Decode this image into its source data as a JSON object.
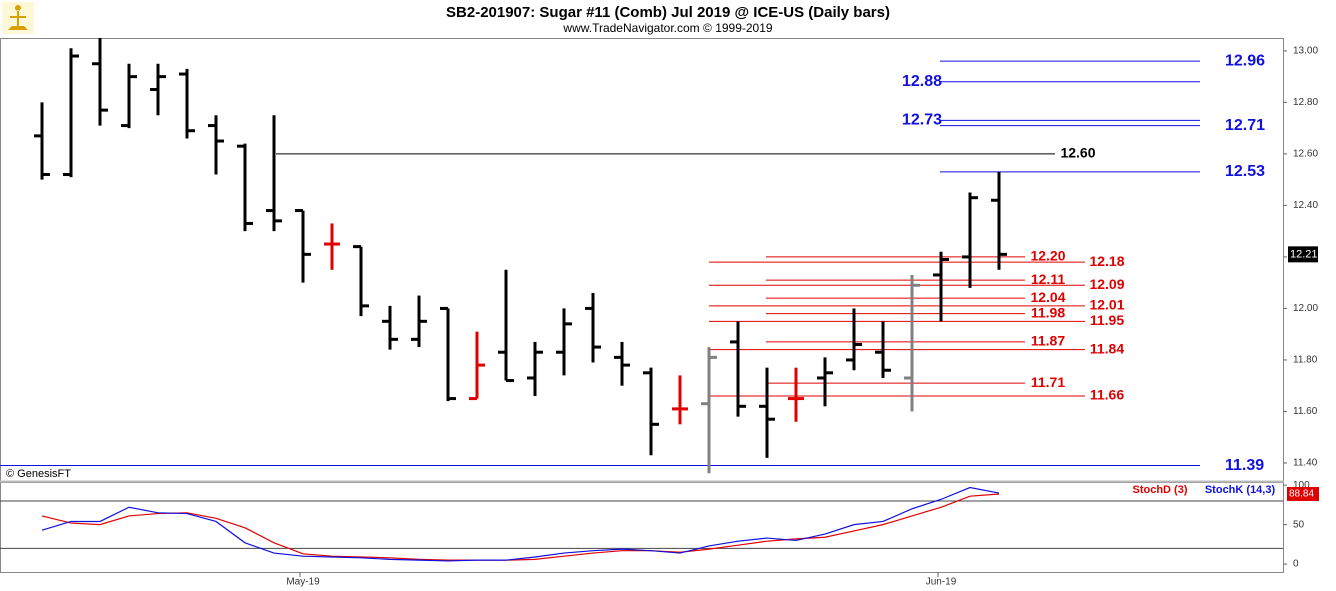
{
  "chart_data": [
    {
      "type": "ohlc",
      "title": "SB2-201907:  Sugar #11 (Comb) Jul 2019 @ ICE-US  (Daily bars)",
      "subtitle": "www.TradeNavigator.com © 1999-2019",
      "source": "© GenesisFT",
      "categories": [
        null,
        null,
        null,
        null,
        null,
        null,
        null,
        null,
        null,
        "May-19",
        null,
        null,
        null,
        null,
        null,
        null,
        null,
        null,
        null,
        null,
        null,
        null,
        null,
        null,
        null,
        null,
        null,
        null,
        null,
        null,
        null,
        "Jun-19",
        null,
        null
      ],
      "open": [
        12.67,
        12.52,
        12.95,
        12.71,
        12.85,
        12.91,
        12.71,
        12.63,
        12.38,
        12.38,
        12.25,
        12.24,
        11.95,
        11.88,
        12.0,
        11.65,
        11.83,
        11.73,
        11.83,
        12.0,
        11.81,
        11.75,
        11.61,
        11.63,
        11.87,
        11.62,
        11.65,
        11.73,
        11.8,
        11.83,
        11.73,
        12.13,
        12.2,
        12.42
      ],
      "high": [
        12.8,
        13.01,
        13.05,
        12.95,
        12.95,
        12.93,
        12.75,
        12.64,
        12.75,
        12.38,
        12.33,
        12.24,
        12.01,
        12.05,
        12.0,
        11.91,
        12.15,
        11.87,
        12.0,
        12.06,
        11.87,
        11.77,
        11.74,
        11.85,
        11.95,
        11.77,
        11.77,
        11.81,
        12.0,
        11.95,
        12.13,
        12.22,
        12.45,
        12.53
      ],
      "low": [
        12.5,
        12.51,
        12.71,
        12.7,
        12.75,
        12.66,
        12.52,
        12.3,
        12.3,
        12.1,
        12.15,
        11.97,
        11.84,
        11.85,
        11.64,
        11.65,
        11.72,
        11.66,
        11.74,
        11.79,
        11.7,
        11.43,
        11.55,
        11.36,
        11.58,
        11.42,
        11.56,
        11.62,
        11.76,
        11.73,
        11.6,
        11.95,
        12.08,
        12.15
      ],
      "close": [
        12.52,
        12.98,
        12.77,
        12.9,
        12.9,
        12.69,
        12.65,
        12.33,
        12.34,
        12.21,
        12.25,
        12.01,
        11.88,
        11.95,
        11.65,
        11.78,
        11.72,
        11.83,
        11.94,
        11.85,
        11.78,
        11.55,
        11.61,
        11.81,
        11.62,
        11.57,
        11.65,
        11.75,
        11.86,
        11.76,
        12.09,
        12.19,
        12.43,
        12.21
      ],
      "colors": [
        "#000000",
        "#000000",
        "#000000",
        "#000000",
        "#000000",
        "#000000",
        "#000000",
        "#000000",
        "#000000",
        "#000000",
        "#e00000",
        "#000000",
        "#000000",
        "#000000",
        "#000000",
        "#e00000",
        "#000000",
        "#000000",
        "#000000",
        "#000000",
        "#000000",
        "#000000",
        "#e00000",
        "#808080",
        "#000000",
        "#000000",
        "#e00000",
        "#000000",
        "#000000",
        "#000000",
        "#808080",
        "#000000",
        "#000000",
        "#000000"
      ],
      "last_price": 12.21,
      "ylim": [
        11.33,
        13.05
      ],
      "yticks": [
        {
          "value": 11.4,
          "label": "11.40"
        },
        {
          "value": 11.6,
          "label": "11.60"
        },
        {
          "value": 11.8,
          "label": "11.80"
        },
        {
          "value": 12.0,
          "label": "12.00"
        },
        {
          "value": 12.2,
          "label": "12.20"
        },
        {
          "value": 12.4,
          "label": "12.40"
        },
        {
          "value": 12.6,
          "label": "12.60"
        },
        {
          "value": 12.8,
          "label": "12.80"
        },
        {
          "value": 13.0,
          "label": "13.00"
        }
      ],
      "levels": [
        {
          "value": 12.96,
          "label": "12.96",
          "color": "#1010e0"
        },
        {
          "value": 12.88,
          "label": "12.88",
          "color": "#1010e0"
        },
        {
          "value": 12.73,
          "label": "12.73",
          "color": "#1010e0"
        },
        {
          "value": 12.71,
          "label": "12.71",
          "color": "#1010e0"
        },
        {
          "value": 12.6,
          "label": "12.60",
          "color": "#000000"
        },
        {
          "value": 12.53,
          "label": "12.53",
          "color": "#1010e0"
        },
        {
          "value": 12.2,
          "label": "12.20",
          "color": "#e00000"
        },
        {
          "value": 12.18,
          "label": "12.18",
          "color": "#e00000"
        },
        {
          "value": 12.11,
          "label": "12.11",
          "color": "#e00000"
        },
        {
          "value": 12.09,
          "label": "12.09",
          "color": "#e00000"
        },
        {
          "value": 12.04,
          "label": "12.04",
          "color": "#e00000"
        },
        {
          "value": 12.01,
          "label": "12.01",
          "color": "#e00000"
        },
        {
          "value": 11.98,
          "label": "11.98",
          "color": "#e00000"
        },
        {
          "value": 11.95,
          "label": "11.95",
          "color": "#e00000"
        },
        {
          "value": 11.87,
          "label": "11.87",
          "color": "#e00000"
        },
        {
          "value": 11.84,
          "label": "11.84",
          "color": "#e00000"
        },
        {
          "value": 11.71,
          "label": "11.71",
          "color": "#e00000"
        },
        {
          "value": 11.66,
          "label": "11.66",
          "color": "#e00000"
        },
        {
          "value": 11.39,
          "label": "11.39",
          "color": "#1010e0"
        }
      ]
    },
    {
      "type": "line",
      "series": [
        {
          "name": "StochD (3)",
          "color": "#e00000",
          "values": [
            61,
            52,
            50,
            61,
            64,
            65,
            58,
            46,
            27,
            13,
            10,
            9,
            8,
            6,
            5,
            5,
            5,
            6,
            10,
            14,
            17,
            17,
            15,
            19,
            24,
            29,
            32,
            34,
            42,
            50,
            61,
            72,
            86,
            88.84
          ]
        },
        {
          "name": "StochK (14,3)",
          "color": "#1010e0",
          "values": [
            43,
            54,
            54,
            72,
            65,
            64,
            54,
            27,
            14,
            10,
            9,
            8,
            6,
            5,
            4,
            5,
            5,
            9,
            14,
            17,
            19,
            17,
            14,
            23,
            29,
            33,
            30,
            38,
            50,
            54,
            70,
            82,
            97,
            90
          ]
        }
      ],
      "last_value": 88.84,
      "ylim": [
        -10,
        104
      ],
      "yticks": [
        0,
        50,
        100
      ],
      "bands": [
        20,
        80
      ]
    }
  ]
}
